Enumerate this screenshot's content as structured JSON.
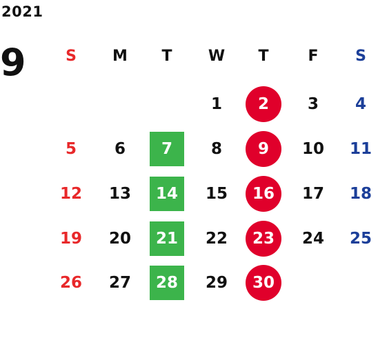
{
  "calendar": {
    "year": "2021",
    "month": "9",
    "weekdays": [
      "S",
      "M",
      "T",
      "W",
      "T",
      "F",
      "S"
    ],
    "weeks": [
      [
        "",
        "",
        "",
        "1",
        "2",
        "3",
        "4"
      ],
      [
        "5",
        "6",
        "7",
        "8",
        "9",
        "10",
        "11"
      ],
      [
        "12",
        "13",
        "14",
        "15",
        "16",
        "17",
        "18"
      ],
      [
        "19",
        "20",
        "21",
        "22",
        "23",
        "24",
        "25"
      ],
      [
        "26",
        "27",
        "28",
        "29",
        "30",
        "",
        ""
      ]
    ],
    "highlights": {
      "red_circle_days": [
        "2",
        "9",
        "16",
        "23",
        "30"
      ],
      "green_square_days": [
        "7",
        "14",
        "21",
        "28"
      ]
    },
    "colors": {
      "sunday": "#e8282a",
      "saturday": "#1c3f99",
      "circle": "#e0002b",
      "square": "#3cb44b"
    }
  }
}
